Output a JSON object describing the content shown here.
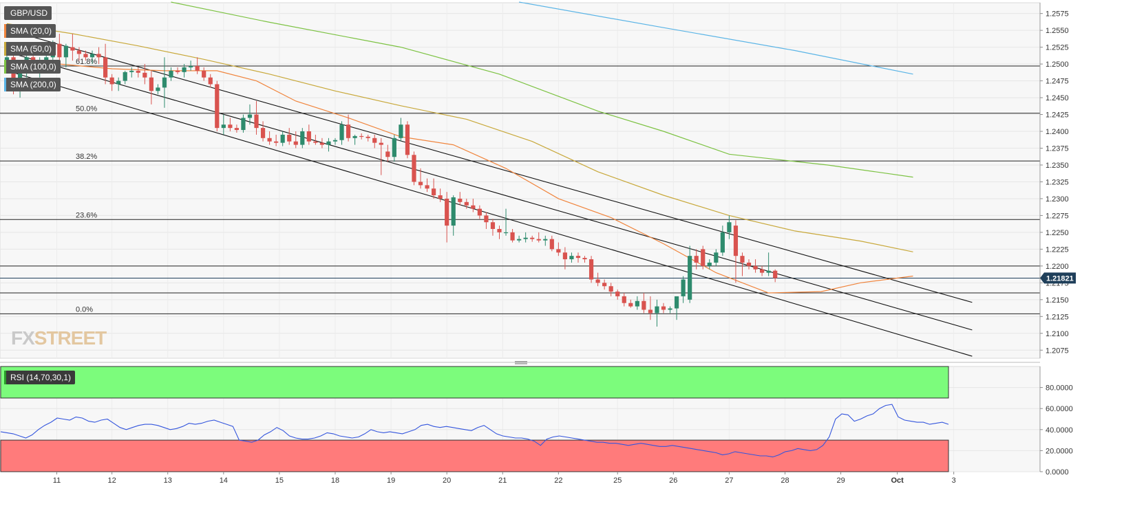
{
  "chart_data": [
    {
      "type": "candlestick",
      "symbol": "GBP/USD",
      "y_ticks": [
        "1.2575",
        "1.2550",
        "1.2525",
        "1.2500",
        "1.2475",
        "1.2450",
        "1.2425",
        "1.2400",
        "1.2375",
        "1.2350",
        "1.2325",
        "1.2300",
        "1.2275",
        "1.2250",
        "1.2225",
        "1.2200",
        "1.2175",
        "1.2150",
        "1.2125",
        "1.2100",
        "1.2075"
      ],
      "ylim": [
        1.2063,
        1.2591
      ],
      "x_ticks": [
        "11",
        "12",
        "13",
        "14",
        "15",
        "18",
        "19",
        "20",
        "21",
        "22",
        "25",
        "26",
        "27",
        "28",
        "29",
        "Oct",
        "3"
      ],
      "last_price": "1.21821",
      "legend": [
        {
          "label": "SMA (20,0)",
          "color": "#f0843c"
        },
        {
          "label": "SMA (50,0)",
          "color": "#c8a83a"
        },
        {
          "label": "SMA (100,0)",
          "color": "#7cc242"
        },
        {
          "label": "SMA (200,0)",
          "color": "#5ab4e6"
        }
      ],
      "fib_levels": [
        {
          "label": "61.8%",
          "value": 1.2497
        },
        {
          "label": "50.0%",
          "value": 1.2427
        },
        {
          "label": "38.2%",
          "value": 1.2356
        },
        {
          "label": "23.6%",
          "value": 1.2269
        },
        {
          "label": "0.0%",
          "value": 1.2129
        }
      ],
      "horizontal_levels": [
        1.22,
        1.2182,
        1.216
      ],
      "channel_lines": [
        {
          "start": [
            0,
            1.2551
          ],
          "end": [
            147,
            1.2146
          ]
        },
        {
          "start": [
            0,
            1.2518
          ],
          "end": [
            147,
            1.2105
          ]
        },
        {
          "start": [
            0,
            1.249
          ],
          "end": [
            147,
            1.2066
          ]
        }
      ],
      "sma20": [
        [
          0,
          1.25
        ],
        [
          8,
          1.25
        ],
        [
          16,
          1.2493
        ],
        [
          24,
          1.249
        ],
        [
          32,
          1.249
        ],
        [
          38,
          1.2475
        ],
        [
          44,
          1.2445
        ],
        [
          52,
          1.242
        ],
        [
          60,
          1.2392
        ],
        [
          68,
          1.238
        ],
        [
          76,
          1.2345
        ],
        [
          84,
          1.23
        ],
        [
          92,
          1.2272
        ],
        [
          100,
          1.2233
        ],
        [
          108,
          1.219
        ],
        [
          116,
          1.216
        ],
        [
          124,
          1.2162
        ],
        [
          130,
          1.2175
        ],
        [
          138,
          1.2185
        ]
      ],
      "sma50": [
        [
          0,
          1.256
        ],
        [
          10,
          1.2545
        ],
        [
          20,
          1.2527
        ],
        [
          30,
          1.2507
        ],
        [
          40,
          1.2485
        ],
        [
          50,
          1.246
        ],
        [
          60,
          1.2438
        ],
        [
          70,
          1.2418
        ],
        [
          80,
          1.2385
        ],
        [
          90,
          1.234
        ],
        [
          100,
          1.2305
        ],
        [
          110,
          1.2275
        ],
        [
          120,
          1.2252
        ],
        [
          130,
          1.2237
        ],
        [
          138,
          1.2221
        ]
      ],
      "sma100": [
        [
          25,
          1.2592
        ],
        [
          40,
          1.2562
        ],
        [
          60,
          1.2525
        ],
        [
          75,
          1.2485
        ],
        [
          90,
          1.243
        ],
        [
          100,
          1.24
        ],
        [
          110,
          1.2366
        ],
        [
          125,
          1.235
        ],
        [
          138,
          1.2332
        ]
      ],
      "sma200": [
        [
          78,
          1.2592
        ],
        [
          100,
          1.2554
        ],
        [
          120,
          1.252
        ],
        [
          138,
          1.2485
        ]
      ],
      "candles": [
        [
          1.25,
          1.252,
          1.249,
          1.251
        ],
        [
          1.251,
          1.2515,
          1.2455,
          1.2465
        ],
        [
          1.2465,
          1.2505,
          1.245,
          1.25
        ],
        [
          1.25,
          1.252,
          1.248,
          1.251
        ],
        [
          1.251,
          1.2525,
          1.249,
          1.2495
        ],
        [
          1.2495,
          1.251,
          1.248,
          1.25
        ],
        [
          1.25,
          1.252,
          1.2495,
          1.251
        ],
        [
          1.251,
          1.2535,
          1.25,
          1.253
        ],
        [
          1.253,
          1.2545,
          1.2505,
          1.251
        ],
        [
          1.251,
          1.253,
          1.2495,
          1.2527
        ],
        [
          1.2525,
          1.2545,
          1.2505,
          1.252
        ],
        [
          1.252,
          1.2525,
          1.2505,
          1.2515
        ],
        [
          1.2515,
          1.252,
          1.2505,
          1.251
        ],
        [
          1.251,
          1.252,
          1.25,
          1.2515
        ],
        [
          1.2515,
          1.2525,
          1.25,
          1.251
        ],
        [
          1.251,
          1.253,
          1.247,
          1.248
        ],
        [
          1.248,
          1.2485,
          1.246,
          1.247
        ],
        [
          1.247,
          1.248,
          1.246,
          1.2475
        ],
        [
          1.2475,
          1.249,
          1.247,
          1.2488
        ],
        [
          1.2488,
          1.2495,
          1.248,
          1.249
        ],
        [
          1.249,
          1.2495,
          1.248,
          1.2487
        ],
        [
          1.2487,
          1.25,
          1.247,
          1.248
        ],
        [
          1.248,
          1.249,
          1.244,
          1.246
        ],
        [
          1.246,
          1.247,
          1.2455,
          1.2465
        ],
        [
          1.2465,
          1.251,
          1.2435,
          1.248
        ],
        [
          1.248,
          1.2495,
          1.2475,
          1.249
        ],
        [
          1.249,
          1.2495,
          1.2485,
          1.2488
        ],
        [
          1.2488,
          1.25,
          1.248,
          1.2495
        ],
        [
          1.2495,
          1.2505,
          1.249,
          1.2497
        ],
        [
          1.2497,
          1.251,
          1.2485,
          1.249
        ],
        [
          1.249,
          1.2495,
          1.2475,
          1.248
        ],
        [
          1.248,
          1.2485,
          1.2465,
          1.247
        ],
        [
          1.247,
          1.2475,
          1.24,
          1.2405
        ],
        [
          1.2405,
          1.2425,
          1.2395,
          1.241
        ],
        [
          1.241,
          1.242,
          1.24,
          1.2405
        ],
        [
          1.2405,
          1.241,
          1.2398,
          1.2402
        ],
        [
          1.2402,
          1.2425,
          1.2398,
          1.242
        ],
        [
          1.242,
          1.244,
          1.241,
          1.2425
        ],
        [
          1.2425,
          1.2445,
          1.2395,
          1.2405
        ],
        [
          1.2405,
          1.2415,
          1.2385,
          1.239
        ],
        [
          1.239,
          1.24,
          1.238,
          1.2385
        ],
        [
          1.2385,
          1.2395,
          1.2378,
          1.2383
        ],
        [
          1.2383,
          1.24,
          1.2378,
          1.2395
        ],
        [
          1.2395,
          1.2405,
          1.238,
          1.2385
        ],
        [
          1.2385,
          1.24,
          1.2375,
          1.238
        ],
        [
          1.238,
          1.2405,
          1.2375,
          1.24
        ],
        [
          1.24,
          1.241,
          1.238,
          1.2385
        ],
        [
          1.2385,
          1.2395,
          1.238,
          1.2383
        ],
        [
          1.2383,
          1.239,
          1.2375,
          1.238
        ],
        [
          1.238,
          1.239,
          1.237,
          1.2385
        ],
        [
          1.2385,
          1.239,
          1.238,
          1.2387
        ],
        [
          1.2387,
          1.2415,
          1.238,
          1.241
        ],
        [
          1.241,
          1.2425,
          1.2385,
          1.239
        ],
        [
          1.239,
          1.2395,
          1.238,
          1.2393
        ],
        [
          1.2393,
          1.2397,
          1.2388,
          1.2392
        ],
        [
          1.2392,
          1.2395,
          1.2385,
          1.239
        ],
        [
          1.239,
          1.2395,
          1.2375,
          1.2383
        ],
        [
          1.2383,
          1.239,
          1.2335,
          1.238
        ],
        [
          1.237,
          1.238,
          1.2355,
          1.2362
        ],
        [
          1.2362,
          1.2395,
          1.2355,
          1.239
        ],
        [
          1.239,
          1.242,
          1.2385,
          1.241
        ],
        [
          1.241,
          1.2415,
          1.236,
          1.2365
        ],
        [
          1.2365,
          1.237,
          1.232,
          1.2325
        ],
        [
          1.2325,
          1.2345,
          1.2315,
          1.232
        ],
        [
          1.232,
          1.233,
          1.231,
          1.2315
        ],
        [
          1.2315,
          1.233,
          1.23,
          1.2305
        ],
        [
          1.2305,
          1.2315,
          1.2295,
          1.23
        ],
        [
          1.23,
          1.231,
          1.2235,
          1.226
        ],
        [
          1.226,
          1.2305,
          1.2245,
          1.2302
        ],
        [
          1.23,
          1.231,
          1.229,
          1.2295
        ],
        [
          1.2295,
          1.23,
          1.2285,
          1.229
        ],
        [
          1.229,
          1.23,
          1.228,
          1.2285
        ],
        [
          1.2285,
          1.229,
          1.227,
          1.2275
        ],
        [
          1.2275,
          1.228,
          1.2255,
          1.2265
        ],
        [
          1.2265,
          1.227,
          1.2245,
          1.2255
        ],
        [
          1.2255,
          1.226,
          1.224,
          1.225
        ],
        [
          1.225,
          1.2285,
          1.2245,
          1.225
        ],
        [
          1.225,
          1.2255,
          1.2235,
          1.2238
        ],
        [
          1.2238,
          1.2245,
          1.2235,
          1.224
        ],
        [
          1.224,
          1.225,
          1.2235,
          1.2242
        ],
        [
          1.2242,
          1.2245,
          1.2236,
          1.224
        ],
        [
          1.224,
          1.225,
          1.2235,
          1.2238
        ],
        [
          1.2238,
          1.2245,
          1.223,
          1.224
        ],
        [
          1.224,
          1.2245,
          1.2222,
          1.2225
        ],
        [
          1.2225,
          1.2235,
          1.2215,
          1.222
        ],
        [
          1.222,
          1.2228,
          1.2195,
          1.221
        ],
        [
          1.221,
          1.222,
          1.2205,
          1.2215
        ],
        [
          1.2215,
          1.222,
          1.2205,
          1.2212
        ],
        [
          1.2212,
          1.2215,
          1.2205,
          1.221
        ],
        [
          1.221,
          1.2215,
          1.2175,
          1.218
        ],
        [
          1.218,
          1.219,
          1.217,
          1.2175
        ],
        [
          1.2175,
          1.218,
          1.2165,
          1.217
        ],
        [
          1.217,
          1.2175,
          1.2155,
          1.2162
        ],
        [
          1.2162,
          1.2165,
          1.215,
          1.2155
        ],
        [
          1.2155,
          1.216,
          1.214,
          1.2145
        ],
        [
          1.2145,
          1.215,
          1.2138,
          1.214
        ],
        [
          1.214,
          1.2155,
          1.2135,
          1.2148
        ],
        [
          1.2148,
          1.216,
          1.213,
          1.2135
        ],
        [
          1.2135,
          1.2155,
          1.212,
          1.213
        ],
        [
          1.213,
          1.215,
          1.211,
          1.214
        ],
        [
          1.214,
          1.2145,
          1.213,
          1.2135
        ],
        [
          1.2135,
          1.214,
          1.213,
          1.2137
        ],
        [
          1.2137,
          1.215,
          1.212,
          1.2155
        ],
        [
          1.2155,
          1.2185,
          1.2145,
          1.218
        ],
        [
          1.215,
          1.223,
          1.2145,
          1.2215
        ],
        [
          1.2215,
          1.2225,
          1.2195,
          1.2205
        ],
        [
          1.2225,
          1.223,
          1.2195,
          1.22
        ],
        [
          1.22,
          1.221,
          1.2195,
          1.2205
        ],
        [
          1.2205,
          1.2225,
          1.22,
          1.222
        ],
        [
          1.222,
          1.226,
          1.2215,
          1.225
        ],
        [
          1.225,
          1.2275,
          1.224,
          1.2265
        ],
        [
          1.226,
          1.2268,
          1.2175,
          1.2215
        ],
        [
          1.2215,
          1.222,
          1.2185,
          1.2205
        ],
        [
          1.2205,
          1.221,
          1.2195,
          1.22
        ],
        [
          1.22,
          1.221,
          1.219,
          1.2195
        ],
        [
          1.2195,
          1.22,
          1.2185,
          1.219
        ],
        [
          1.219,
          1.222,
          1.2185,
          1.2193
        ],
        [
          1.2193,
          1.2195,
          1.2176,
          1.2182
        ]
      ]
    },
    {
      "type": "line",
      "indicator": "RSI (14,70,30,1)",
      "y_ticks": [
        "80.0000",
        "60.0000",
        "40.0000",
        "20.0000",
        "0.0000"
      ],
      "ylim": [
        0,
        100
      ],
      "overbought": 70,
      "oversold": 30,
      "values": [
        38,
        37,
        36,
        34,
        32,
        35,
        40,
        44,
        47,
        51,
        50,
        49,
        52,
        51,
        48,
        47,
        49,
        50,
        46,
        42,
        40,
        42,
        44,
        45,
        45,
        44,
        42,
        40,
        41,
        43,
        46,
        45,
        46,
        48,
        49,
        47,
        45,
        43,
        30,
        29,
        28,
        30,
        35,
        38,
        42,
        39,
        34,
        32,
        31,
        31,
        32,
        34,
        37,
        36,
        34,
        33,
        32,
        33,
        36,
        40,
        38,
        37,
        38,
        37,
        36,
        38,
        40,
        44,
        45,
        43,
        42,
        43,
        42,
        41,
        40,
        39,
        42,
        44,
        40,
        36,
        34,
        33,
        32,
        32,
        31,
        29,
        25,
        31,
        33,
        34,
        33,
        32,
        31,
        30,
        29,
        28,
        28,
        27,
        27,
        26,
        25,
        26,
        27,
        26,
        25,
        24,
        24,
        25,
        24,
        23,
        22,
        21,
        20,
        19,
        18,
        16,
        17,
        19,
        18,
        17,
        16,
        15,
        15,
        14,
        16,
        19,
        20,
        22,
        21,
        20,
        21,
        25,
        33,
        50,
        55,
        54,
        48,
        50,
        53,
        55,
        60,
        63,
        64,
        52,
        49,
        48,
        47,
        47,
        45,
        46,
        47,
        45
      ]
    }
  ]
}
